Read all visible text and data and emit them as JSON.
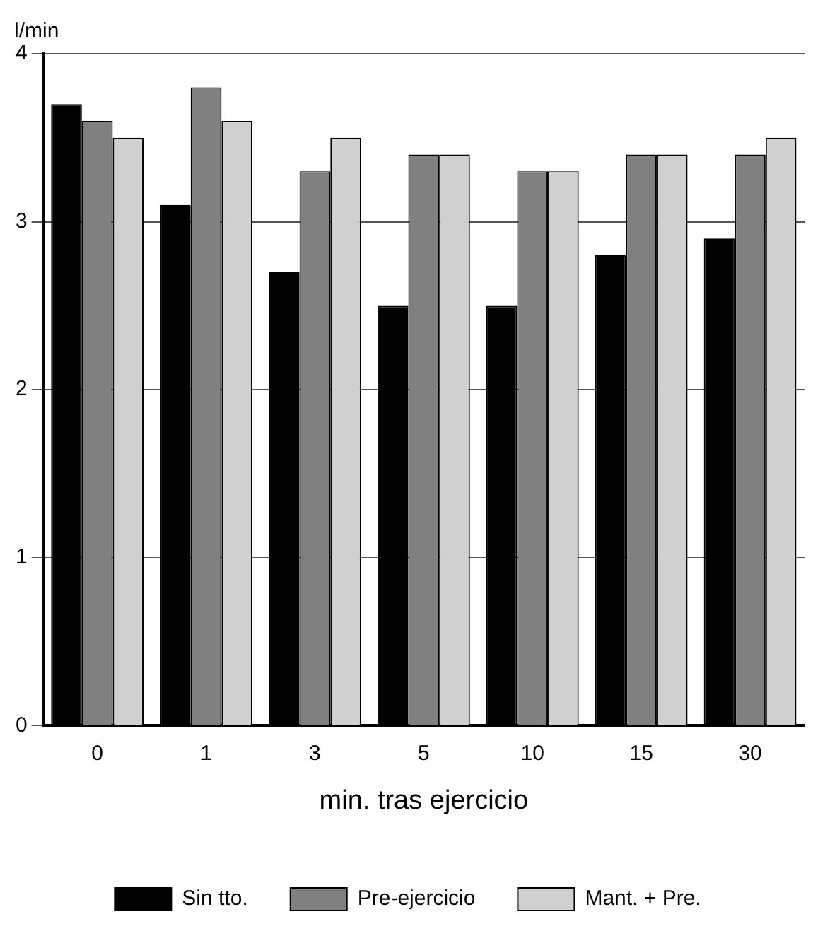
{
  "chart_data": {
    "type": "bar",
    "xlabel": "min. tras ejercicio",
    "ylabel": "l/min",
    "categories": [
      "0",
      "1",
      "3",
      "5",
      "10",
      "15",
      "30"
    ],
    "series": [
      {
        "name": "Sin tto.",
        "color": "#000000",
        "values": [
          3.7,
          3.1,
          2.7,
          2.5,
          2.5,
          2.8,
          2.9
        ]
      },
      {
        "name": "Pre-ejercicio",
        "color": "#808080",
        "values": [
          3.6,
          3.8,
          3.3,
          3.4,
          3.3,
          3.4,
          3.4
        ]
      },
      {
        "name": "Mant. + Pre.",
        "color": "#d0d0d0",
        "values": [
          3.5,
          3.6,
          3.5,
          3.4,
          3.3,
          3.4,
          3.5
        ]
      }
    ],
    "ylim": [
      0,
      4
    ],
    "yticks": [
      0,
      1,
      2,
      3,
      4
    ],
    "grid": "y",
    "legend": "bottom"
  }
}
